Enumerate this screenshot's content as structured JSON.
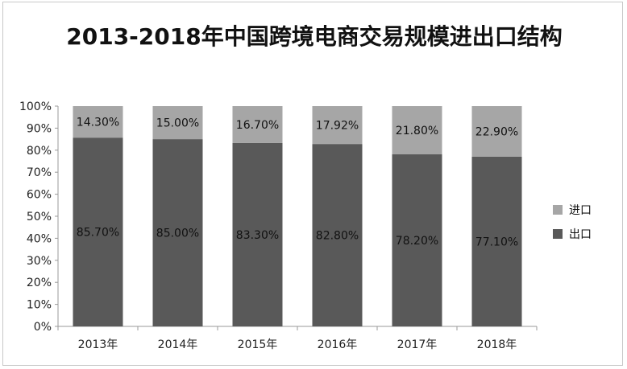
{
  "chart_data": {
    "type": "stacked_bar_100",
    "title": "2013-2018年中国跨境电商交易规模进出口结构",
    "categories": [
      "2013年",
      "2014年",
      "2015年",
      "2016年",
      "2017年",
      "2018年"
    ],
    "series": [
      {
        "name": "出口",
        "color": "#595959",
        "values": [
          85.7,
          85.0,
          83.3,
          82.8,
          78.2,
          77.1
        ],
        "labels": [
          "85.70%",
          "85.00%",
          "83.30%",
          "82.80%",
          "78.20%",
          "77.10%"
        ]
      },
      {
        "name": "进口",
        "color": "#a6a6a6",
        "values": [
          14.3,
          15.0,
          16.7,
          17.92,
          21.8,
          22.9
        ],
        "labels": [
          "14.30%",
          "15.00%",
          "16.70%",
          "17.92%",
          "21.80%",
          "22.90%"
        ]
      }
    ],
    "yticks": [
      "0%",
      "10%",
      "20%",
      "30%",
      "40%",
      "50%",
      "60%",
      "70%",
      "80%",
      "90%",
      "100%"
    ],
    "ylim": [
      0,
      100
    ],
    "legend": [
      {
        "name": "进口",
        "color": "#a6a6a6"
      },
      {
        "name": "出口",
        "color": "#595959"
      }
    ],
    "legend_position": "right"
  }
}
